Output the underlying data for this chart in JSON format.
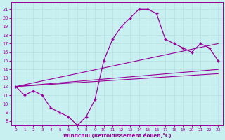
{
  "xlabel": "Windchill (Refroidissement éolien,°C)",
  "bg_color": "#c8f0f0",
  "line_color": "#990099",
  "grid_color": "#b8e0e0",
  "x_ticks": [
    0,
    1,
    2,
    3,
    4,
    5,
    6,
    7,
    8,
    9,
    10,
    11,
    12,
    13,
    14,
    15,
    16,
    17,
    18,
    19,
    20,
    21,
    22,
    23
  ],
  "y_ticks": [
    8,
    9,
    10,
    11,
    12,
    13,
    14,
    15,
    16,
    17,
    18,
    19,
    20,
    21
  ],
  "ylim": [
    7.5,
    21.8
  ],
  "xlim": [
    -0.5,
    23.5
  ],
  "curve": {
    "x": [
      0,
      1,
      2,
      3,
      4,
      5,
      6,
      7,
      8,
      9,
      10,
      11,
      12,
      13,
      14,
      15,
      16,
      17,
      18,
      19,
      20,
      21,
      22,
      23
    ],
    "y": [
      12,
      11,
      11.5,
      11,
      9.5,
      9,
      8.5,
      7.5,
      8.5,
      10.5,
      15,
      17.5,
      19,
      20,
      21,
      21,
      20.5,
      17.5,
      17,
      16.5,
      16,
      17,
      16.5,
      15
    ]
  },
  "straight1": {
    "x": [
      0,
      23
    ],
    "y": [
      12,
      13.5
    ]
  },
  "straight2": {
    "x": [
      0,
      23
    ],
    "y": [
      12,
      14.0
    ]
  },
  "straight3": {
    "x": [
      0,
      23
    ],
    "y": [
      12,
      17.0
    ]
  }
}
